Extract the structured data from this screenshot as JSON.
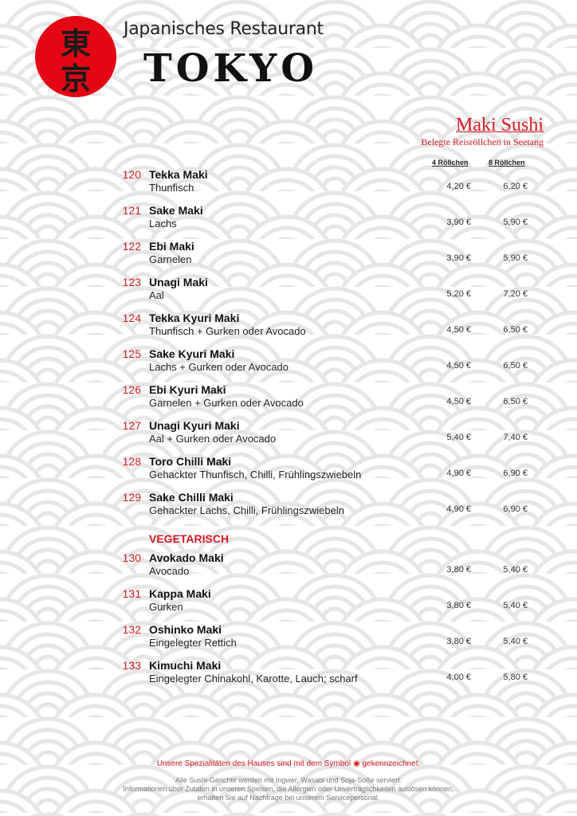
{
  "header": {
    "logo_kanji": [
      "東",
      "京"
    ],
    "subtitle": "Japanisches Restaurant",
    "brand": "TOKYO"
  },
  "section": {
    "title": "Maki Sushi",
    "subtitle": "Belegte Reisröllchen in Seetang",
    "col1": "4 Röllchen",
    "col2": "8 Röllchen"
  },
  "items": [
    {
      "num": "120",
      "name": "Tekka Maki",
      "desc": "Thunfisch",
      "p4": "4,20 €",
      "p8": "6,20 €"
    },
    {
      "num": "121",
      "name": "Sake Maki",
      "desc": "Lachs",
      "p4": "3,90 €",
      "p8": "5,90 €"
    },
    {
      "num": "122",
      "name": "Ebi Maki",
      "desc": "Garnelen",
      "p4": "3,90 €",
      "p8": "5,90 €"
    },
    {
      "num": "123",
      "name": "Unagi Maki",
      "desc": "Aal",
      "p4": "5,20 €",
      "p8": "7,20 €"
    },
    {
      "num": "124",
      "name": "Tekka Kyuri Maki",
      "desc": "Thunfisch + Gurken oder Avocado",
      "p4": "4,50 €",
      "p8": "6,50 €"
    },
    {
      "num": "125",
      "name": "Sake Kyuri Maki",
      "desc": "Lachs + Gurken oder Avocado",
      "p4": "4,50 €",
      "p8": "6,50 €"
    },
    {
      "num": "126",
      "name": "Ebi Kyuri Maki",
      "desc": "Garnelen + Gurken oder Avocado",
      "p4": "4,50 €",
      "p8": "6,50 €"
    },
    {
      "num": "127",
      "name": "Unagi Kyuri Maki",
      "desc": "Aal + Gurken oder Avocado",
      "p4": "5,40 €",
      "p8": "7,40 €"
    },
    {
      "num": "128",
      "name": "Toro Chilli Maki",
      "desc": "Gehackter Thunfisch, Chilli, Frühlingszwiebeln",
      "p4": "4,90 €",
      "p8": "6,90 €"
    },
    {
      "num": "129",
      "name": "Sake Chilli Maki",
      "desc": "Gehackter Lachs, Chilli, Frühlingszwiebeln",
      "p4": "4,90 €",
      "p8": "6,90 €"
    }
  ],
  "veg_heading": "VEGETARISCH",
  "veg_items": [
    {
      "num": "130",
      "name": "Avokado Maki",
      "desc": "Avocado",
      "p4": "3,80 €",
      "p8": "5,40 €"
    },
    {
      "num": "131",
      "name": "Kappa Maki",
      "desc": "Gurken",
      "p4": "3,80 €",
      "p8": "5,40 €"
    },
    {
      "num": "132",
      "name": "Oshinko Maki",
      "desc": "Eingelegter Rettich",
      "p4": "3,80 €",
      "p8": "5,40 €"
    },
    {
      "num": "133",
      "name": "Kimuchi Maki",
      "desc": "Eingelegter Chinakohl, Karotte, Lauch; scharf",
      "p4": "4,00 €",
      "p8": "5,80 €"
    }
  ],
  "footer": {
    "special_before": "Unsere Spezialitäten des Hauses sind mit dem Symbol",
    "special_after": "gekennzeichnet.",
    "lines": [
      "Alle Sushi-Gerichte werden mit Ingwer, Wasabi und Soja-Soße serviert.",
      "Informationen über Zutaten in unseren Speisen, die Allergien oder Unverträglichkeiten auslösen können,",
      "erhalten Sie auf Nachfrage bei unserem Servicepersonal."
    ]
  },
  "colors": {
    "accent": "#d71920",
    "logo_red": "#e40613"
  }
}
